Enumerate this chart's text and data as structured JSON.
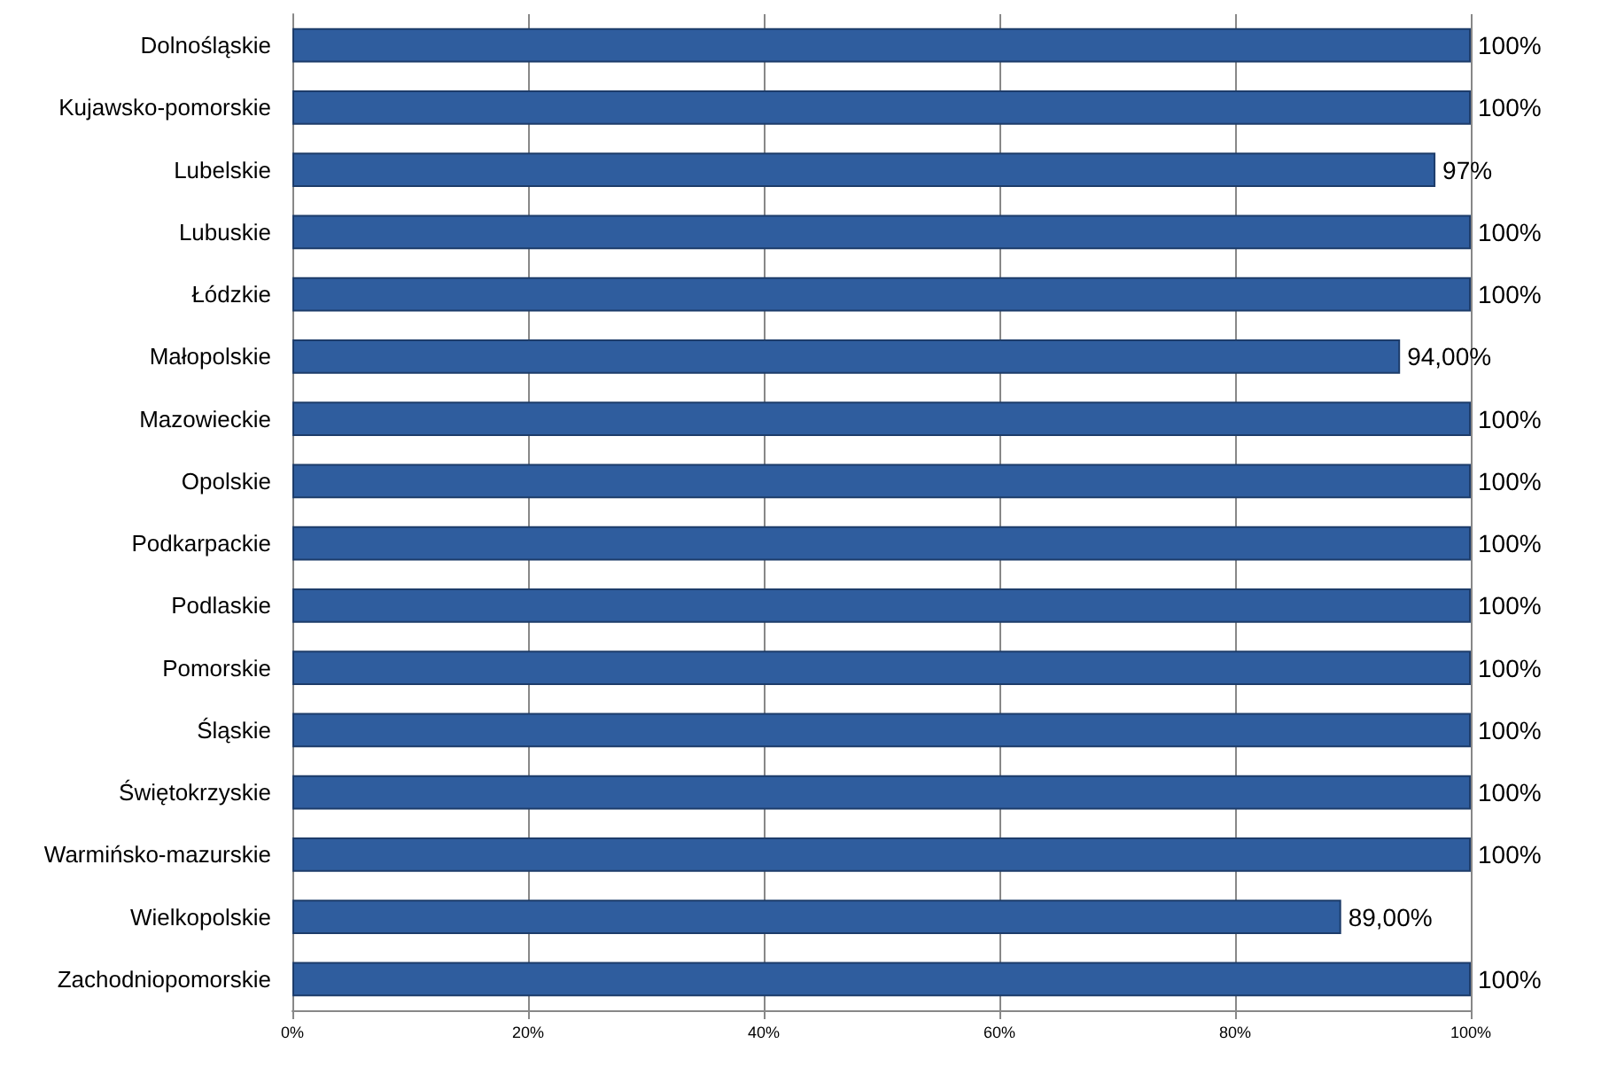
{
  "chart_data": {
    "type": "bar",
    "orientation": "horizontal",
    "categories": [
      "Dolnośląskie",
      "Kujawsko-pomorskie",
      "Lubelskie",
      "Lubuskie",
      "Łódzkie",
      "Małopolskie",
      "Mazowieckie",
      "Opolskie",
      "Podkarpackie",
      "Podlaskie",
      "Pomorskie",
      "Śląskie",
      "Świętokrzyskie",
      "Warmińsko-mazurskie",
      "Wielkopolskie",
      "Zachodniopomorskie"
    ],
    "values": [
      100,
      100,
      97,
      100,
      100,
      94,
      100,
      100,
      100,
      100,
      100,
      100,
      100,
      100,
      89,
      100
    ],
    "value_labels": [
      "100%",
      "100%",
      "97%",
      "100%",
      "100%",
      "94,00%",
      "100%",
      "100%",
      "100%",
      "100%",
      "100%",
      "100%",
      "100%",
      "100%",
      "89,00%",
      "100%"
    ],
    "color": "#2f5d9e",
    "xlim": [
      0,
      100
    ],
    "xticks": [
      {
        "value": 0,
        "label": "0%"
      },
      {
        "value": 20,
        "label": "20%"
      },
      {
        "value": 40,
        "label": "40%"
      },
      {
        "value": 60,
        "label": "60%"
      },
      {
        "value": 80,
        "label": "80%"
      },
      {
        "value": 100,
        "label": "100%"
      }
    ],
    "grid": "x"
  }
}
